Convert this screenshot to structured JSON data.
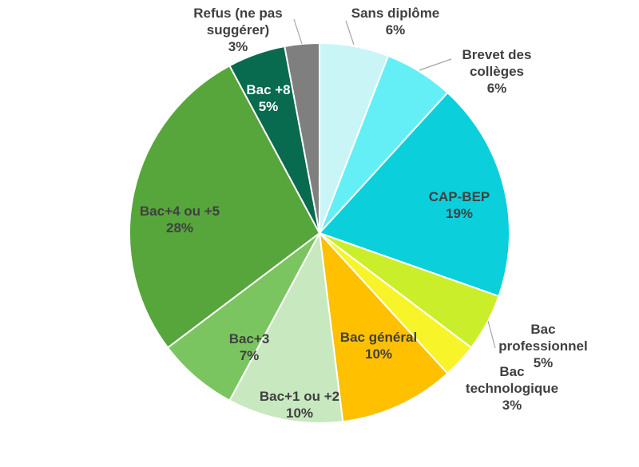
{
  "chart_data": {
    "type": "pie",
    "title": "",
    "start_angle_deg": 0,
    "direction": "clockwise",
    "slices": [
      {
        "label": "Sans diplôme",
        "value": 6,
        "display": "6%",
        "color": "#c9f5f7"
      },
      {
        "label": "Brevet des collèges",
        "value": 6,
        "display": "6%",
        "color": "#64eff6"
      },
      {
        "label": "CAP-BEP",
        "value": 19,
        "display": "19%",
        "color": "#0ccfdc"
      },
      {
        "label": "Bac professionnel",
        "value": 5,
        "display": "5%",
        "color": "#cbee2a"
      },
      {
        "label": "Bac technologique",
        "value": 3,
        "display": "3%",
        "color": "#f8f42a"
      },
      {
        "label": "Bac général",
        "value": 10,
        "display": "10%",
        "color": "#ffc000"
      },
      {
        "label": "Bac+1 ou +2",
        "value": 10,
        "display": "10%",
        "color": "#c8e8c0"
      },
      {
        "label": "Bac+3",
        "value": 7,
        "display": "7%",
        "color": "#7bc560"
      },
      {
        "label": "Bac+4 ou +5",
        "value": 28,
        "display": "28%",
        "color": "#57a63b"
      },
      {
        "label": "Bac +8",
        "value": 5,
        "display": "5%",
        "color": "#086a4e"
      },
      {
        "label": "Refus (ne pas suggérer)",
        "value": 3,
        "display": "3%",
        "color": "#7f7f7f"
      }
    ]
  }
}
